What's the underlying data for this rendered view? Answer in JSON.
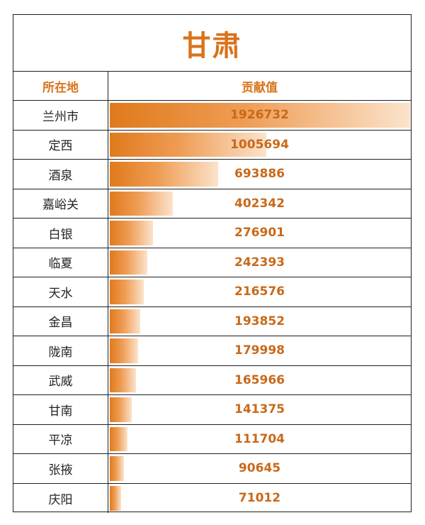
{
  "title": "甘肃",
  "headers": {
    "location": "所在地",
    "value": "贡献值"
  },
  "colors": {
    "accent": "#d9731b",
    "bar_start": "#e07a1c",
    "bar_end": "#fbe3cc"
  },
  "chart_data": {
    "type": "bar",
    "orientation": "horizontal",
    "title": "甘肃",
    "xlabel": "贡献值",
    "ylabel": "所在地",
    "categories": [
      "兰州市",
      "定西",
      "酒泉",
      "嘉峪关",
      "白银",
      "临夏",
      "天水",
      "金昌",
      "陇南",
      "武威",
      "甘南",
      "平凉",
      "张掖",
      "庆阳"
    ],
    "values": [
      1926732,
      1005694,
      693886,
      402342,
      276901,
      242393,
      216576,
      193852,
      179998,
      165966,
      141375,
      111704,
      90645,
      71012
    ],
    "xlim": [
      0,
      1926732
    ],
    "grid": false,
    "legend": "none"
  }
}
